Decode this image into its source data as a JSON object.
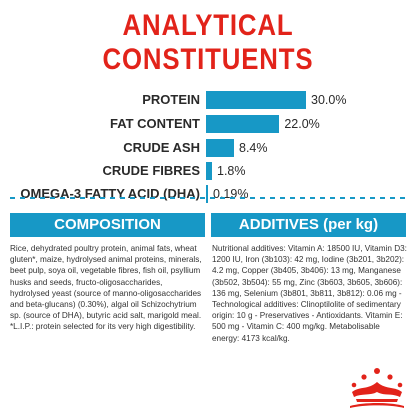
{
  "heading": {
    "line1": "ANALYTICAL",
    "line2": "CONSTITUENTS"
  },
  "constituents": [
    {
      "label": "PROTEIN",
      "display": "30.0%",
      "value": 30.0
    },
    {
      "label": "FAT CONTENT",
      "display": "22.0%",
      "value": 22.0
    },
    {
      "label": "CRUDE ASH",
      "display": "8.4%",
      "value": 8.4
    },
    {
      "label": "CRUDE FIBRES",
      "display": "1.8%",
      "value": 1.8
    },
    {
      "label": "OMEGA-3 FATTY ACID (DHA)",
      "display": "0.19%",
      "value": 0.19
    }
  ],
  "composition": {
    "title": "COMPOSITION",
    "text": "Rice, dehydrated poultry protein, animal fats, wheat gluten*, maize, hydrolysed animal proteins, minerals, beet pulp, soya oil, vegetable fibres, fish oil, psyllium husks and seeds, fructo-oligosaccharides, hydrolysed yeast (source of manno-oligosaccharides and beta-glucans) (0.30%), algal oil Schizochytrium sp. (source of DHA), butyric acid salt, marigold meal. *L.I.P.: protein selected for its very high digestibility."
  },
  "additives": {
    "title": "ADDITIVES (per kg)",
    "text": "Nutritional additives: Vitamin A: 18500 IU, Vitamin D3: 1200 IU, Iron (3b103): 42 mg, Iodine (3b201, 3b202): 4.2 mg, Copper (3b405, 3b406): 13 mg, Manganese (3b502, 3b504): 55 mg, Zinc (3b603, 3b605, 3b606): 136 mg, Selenium (3b801, 3b811, 3b812): 0.06 mg - Technological additives: Clinoptilolite of sedimentary origin: 10 g - Preservatives - Antioxidants. Vitamin E: 500 mg - Vitamin C: 400 mg/kg. Metabolisable energy: 4173 kcal/kg."
  },
  "colors": {
    "accent_red": "#e2231a",
    "accent_blue": "#1798c6"
  },
  "logo": "royal-canin-crown-logo"
}
